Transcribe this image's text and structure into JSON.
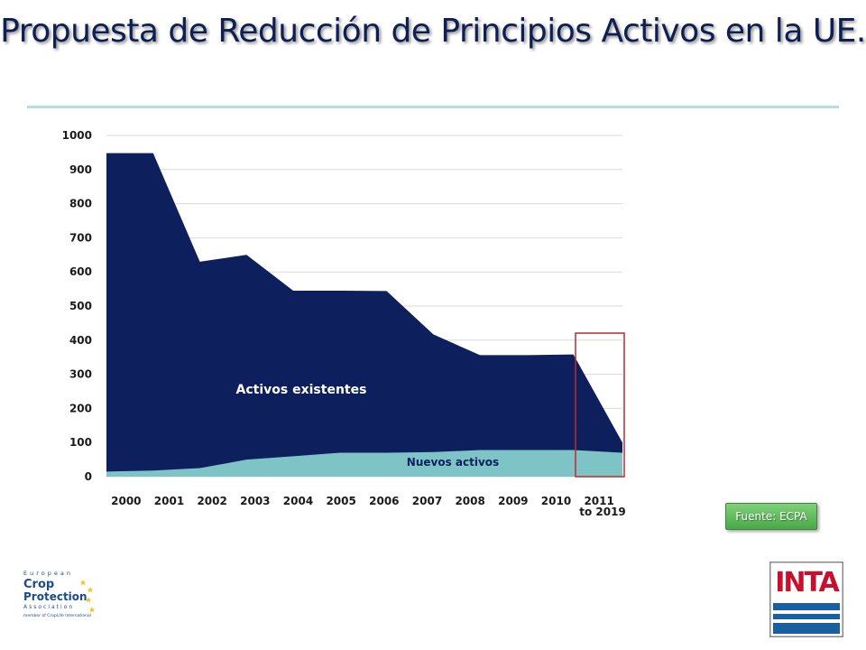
{
  "slide": {
    "title": "Propuesta de Reducción de Principios Activos en la UE.",
    "source_label": "Fuente: ECPA"
  },
  "logos": {
    "ecpa": "European Crop Protection Association",
    "ecpa_tagline": "member of CropLife International",
    "inta": "INTA"
  },
  "colors": {
    "existing": "#0d1f5c",
    "new": "#7ec4c7",
    "highlight_box": "#c0292b",
    "accent_rule": "#b7dce6",
    "source_badge": "#5cb85c",
    "inta_red": "#c8102e",
    "inta_blue": "#1a5fa0"
  },
  "chart_data": {
    "type": "area",
    "categories": [
      "2000",
      "2001",
      "2002",
      "2003",
      "2004",
      "2005",
      "2006",
      "2007",
      "2008",
      "2009",
      "2010",
      "2011"
    ],
    "extra_label": "to 2019",
    "x_points": [
      2000,
      2001,
      2002,
      2003,
      2004,
      2005,
      2006,
      2007,
      2008,
      2009,
      2010,
      2011.05
    ],
    "series": [
      {
        "name": "Nuevos activos",
        "values": [
          15,
          18,
          25,
          50,
          60,
          70,
          70,
          72,
          78,
          78,
          78,
          70
        ]
      },
      {
        "name": "Activos existentes",
        "values": [
          933,
          930,
          605,
          600,
          485,
          475,
          474,
          345,
          278,
          278,
          280,
          30
        ]
      }
    ],
    "total": [
      948,
      948,
      630,
      650,
      545,
      545,
      544,
      417,
      356,
      356,
      358,
      100
    ],
    "ylim": [
      0,
      1000
    ],
    "yticks": [
      0,
      100,
      200,
      300,
      400,
      500,
      600,
      700,
      800,
      900,
      1000
    ],
    "grid": true,
    "highlight": {
      "from": "2011",
      "to": "to 2019"
    },
    "series_label_placement": "inside-area"
  }
}
